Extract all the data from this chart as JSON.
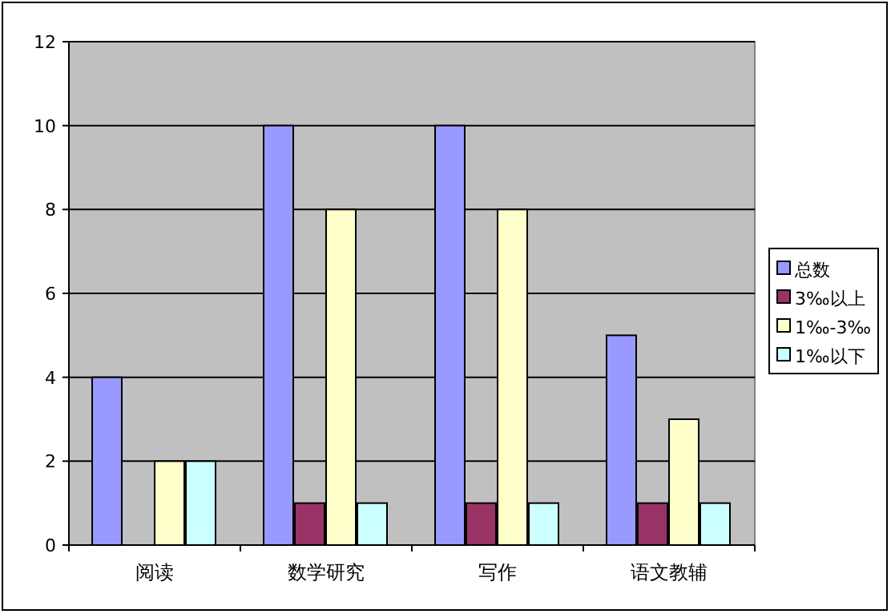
{
  "chart_data": {
    "type": "bar",
    "categories": [
      "阅读",
      "数学研究",
      "写作",
      "语文教辅"
    ],
    "series": [
      {
        "name": "总数",
        "color": "#9999ff",
        "values": [
          4,
          10,
          10,
          5
        ]
      },
      {
        "name": "3‰以上",
        "color": "#993366",
        "values": [
          0,
          1,
          1,
          1
        ]
      },
      {
        "name": "1‰-3‰",
        "color": "#ffffcc",
        "values": [
          2,
          8,
          8,
          3
        ]
      },
      {
        "name": "1‰以下",
        "color": "#ccffff",
        "values": [
          2,
          1,
          1,
          1
        ]
      }
    ],
    "ylim": [
      0,
      12
    ],
    "yticks": [
      0,
      2,
      4,
      6,
      8,
      10,
      12
    ],
    "grid": "y",
    "legend": "right"
  }
}
